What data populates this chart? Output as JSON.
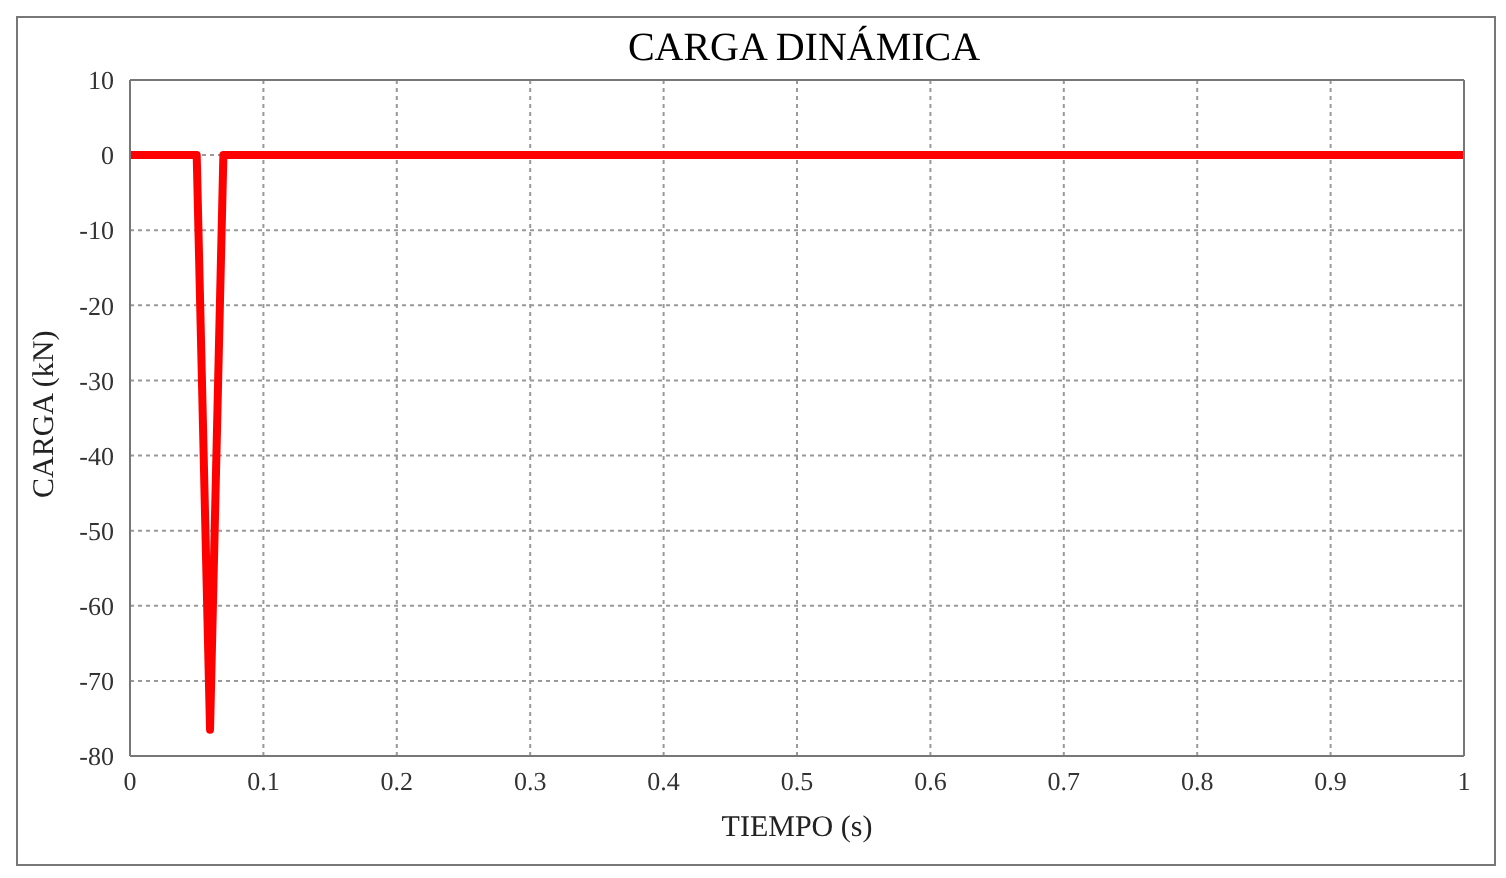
{
  "chart_data": {
    "type": "line",
    "title": "CARGA DINÁMICA",
    "xlabel": "TIEMPO (s)",
    "ylabel": "CARGA (kN)",
    "series": [
      {
        "color": "#ff0000",
        "x": [
          0,
          0.05,
          0.06,
          0.07,
          1
        ],
        "values": [
          0,
          0,
          -76.5,
          0,
          0
        ]
      }
    ],
    "xlim": [
      0,
      1
    ],
    "xticks": [
      0,
      0.1,
      0.2,
      0.3,
      0.4,
      0.5,
      0.6,
      0.7,
      0.8,
      0.9,
      1
    ],
    "ylim": [
      -80,
      10
    ],
    "yticks": [
      -80,
      -70,
      -60,
      -50,
      -40,
      -30,
      -20,
      -10,
      0,
      10
    ],
    "grid": true,
    "marker": "none",
    "line_style": "solid"
  }
}
